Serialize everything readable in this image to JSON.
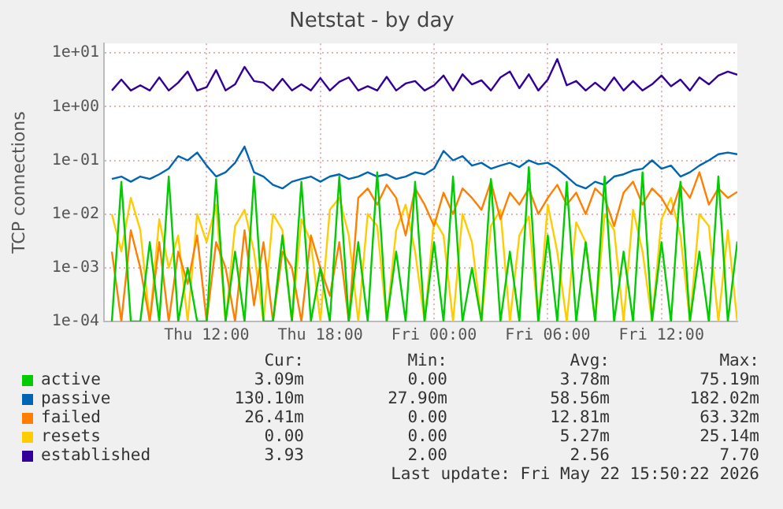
{
  "chart_data": {
    "type": "line",
    "title": "Netstat - by day",
    "ylabel": "TCP connections",
    "log": "y",
    "grid": true,
    "legend": "bottom",
    "marker": "none",
    "line_style": "solid",
    "x": [
      "2026-05-21T07:00",
      "2026-05-21T07:30",
      "2026-05-21T08:00",
      "2026-05-21T08:30",
      "2026-05-21T09:00",
      "2026-05-21T09:30",
      "2026-05-21T10:00",
      "2026-05-21T10:30",
      "2026-05-21T11:00",
      "2026-05-21T11:30",
      "2026-05-21T12:00",
      "2026-05-21T12:30",
      "2026-05-21T13:00",
      "2026-05-21T13:30",
      "2026-05-21T14:00",
      "2026-05-21T14:30",
      "2026-05-21T15:00",
      "2026-05-21T15:30",
      "2026-05-21T16:00",
      "2026-05-21T16:30",
      "2026-05-21T17:00",
      "2026-05-21T17:30",
      "2026-05-21T18:00",
      "2026-05-21T18:30",
      "2026-05-21T19:00",
      "2026-05-21T19:30",
      "2026-05-21T20:00",
      "2026-05-21T20:30",
      "2026-05-21T21:00",
      "2026-05-21T21:30",
      "2026-05-21T22:00",
      "2026-05-21T22:30",
      "2026-05-21T23:00",
      "2026-05-21T23:30",
      "2026-05-22T00:00",
      "2026-05-22T00:30",
      "2026-05-22T01:00",
      "2026-05-22T01:30",
      "2026-05-22T02:00",
      "2026-05-22T02:30",
      "2026-05-22T03:00",
      "2026-05-22T03:30",
      "2026-05-22T04:00",
      "2026-05-22T04:30",
      "2026-05-22T05:00",
      "2026-05-22T05:30",
      "2026-05-22T06:00",
      "2026-05-22T06:30",
      "2026-05-22T07:00",
      "2026-05-22T07:30",
      "2026-05-22T08:00",
      "2026-05-22T08:30",
      "2026-05-22T09:00",
      "2026-05-22T09:30",
      "2026-05-22T10:00",
      "2026-05-22T10:30",
      "2026-05-22T11:00",
      "2026-05-22T11:30",
      "2026-05-22T12:00",
      "2026-05-22T12:30",
      "2026-05-22T13:00",
      "2026-05-22T13:30",
      "2026-05-22T14:00",
      "2026-05-22T14:30",
      "2026-05-22T15:00",
      "2026-05-22T15:30",
      "2026-05-22T16:00"
    ],
    "xlim": [
      "2026-05-21T06:35",
      "2026-05-22T16:00"
    ],
    "xticks": [
      {
        "value": "2026-05-21T12:00",
        "label": "Thu 12:00"
      },
      {
        "value": "2026-05-21T18:00",
        "label": "Thu 18:00"
      },
      {
        "value": "2026-05-22T00:00",
        "label": "Fri 00:00"
      },
      {
        "value": "2026-05-22T06:00",
        "label": "Fri 06:00"
      },
      {
        "value": "2026-05-22T12:00",
        "label": "Fri 12:00"
      }
    ],
    "ylim": [
      0.0001,
      15
    ],
    "yticks": [
      {
        "value": 0.0001,
        "label": "1e-04"
      },
      {
        "value": 0.001,
        "label": "1e-03"
      },
      {
        "value": 0.01,
        "label": "1e-02"
      },
      {
        "value": 0.1,
        "label": "1e-01"
      },
      {
        "value": 1,
        "label": "1e+00"
      },
      {
        "value": 10,
        "label": "1e+01"
      }
    ],
    "series": [
      {
        "name": "active",
        "color": "#00cc00",
        "values": [
          0.0001,
          0.04,
          0.0001,
          0.0001,
          0.003,
          0.0001,
          0.05,
          0.0001,
          0.001,
          0.0001,
          0.0001,
          0.045,
          0.0001,
          0.002,
          0.0001,
          0.05,
          0.0001,
          0.0001,
          0.004,
          0.0001,
          0.04,
          0.0001,
          0.001,
          0.0001,
          0.05,
          0.0001,
          0.003,
          0.0001,
          0.06,
          0.0001,
          0.002,
          0.0001,
          0.04,
          0.0001,
          0.003,
          0.0001,
          0.05,
          0.0001,
          0.001,
          0.0001,
          0.045,
          0.0001,
          0.002,
          0.0001,
          0.075,
          0.0001,
          0.004,
          0.0001,
          0.04,
          0.0001,
          0.003,
          0.0001,
          0.05,
          0.0001,
          0.002,
          0.0001,
          0.06,
          0.0001,
          0.003,
          0.0001,
          0.04,
          0.0001,
          0.002,
          0.0001,
          0.05,
          0.0001,
          0.00309
        ]
      },
      {
        "name": "passive",
        "color": "#0066b3",
        "values": [
          0.045,
          0.05,
          0.04,
          0.05,
          0.045,
          0.055,
          0.07,
          0.12,
          0.1,
          0.14,
          0.08,
          0.05,
          0.06,
          0.09,
          0.18,
          0.06,
          0.05,
          0.035,
          0.03,
          0.04,
          0.045,
          0.05,
          0.04,
          0.05,
          0.055,
          0.045,
          0.05,
          0.06,
          0.05,
          0.055,
          0.045,
          0.05,
          0.06,
          0.055,
          0.07,
          0.15,
          0.1,
          0.12,
          0.08,
          0.09,
          0.07,
          0.08,
          0.09,
          0.075,
          0.1,
          0.085,
          0.09,
          0.07,
          0.05,
          0.035,
          0.03,
          0.04,
          0.035,
          0.05,
          0.055,
          0.065,
          0.07,
          0.1,
          0.07,
          0.08,
          0.05,
          0.06,
          0.08,
          0.1,
          0.13,
          0.14,
          0.13
        ]
      },
      {
        "name": "failed",
        "color": "#ff8000",
        "values": [
          0.002,
          0.0001,
          0.005,
          0.001,
          0.0001,
          0.003,
          0.0001,
          0.002,
          0.0005,
          0.004,
          0.0001,
          0.003,
          0.001,
          0.0001,
          0.005,
          0.0002,
          0.003,
          0.0001,
          0.002,
          0.001,
          0.0001,
          0.004,
          0.001,
          0.0003,
          0.003,
          0.0001,
          0.02,
          0.03,
          0.015,
          0.035,
          0.02,
          0.004,
          0.03,
          0.015,
          0.006,
          0.025,
          0.01,
          0.03,
          0.02,
          0.012,
          0.04,
          0.008,
          0.025,
          0.015,
          0.03,
          0.01,
          0.02,
          0.035,
          0.015,
          0.025,
          0.01,
          0.03,
          0.02,
          0.006,
          0.025,
          0.04,
          0.015,
          0.03,
          0.02,
          0.01,
          0.035,
          0.02,
          0.06,
          0.015,
          0.03,
          0.02,
          0.026
        ]
      },
      {
        "name": "resets",
        "color": "#ffcc00",
        "values": [
          0.01,
          0.002,
          0.02,
          0.005,
          0.0001,
          0.008,
          0.001,
          0.004,
          0.0001,
          0.01,
          0.003,
          0.015,
          0.0001,
          0.006,
          0.012,
          0.002,
          0.0001,
          0.01,
          0.005,
          0.0001,
          0.008,
          0.003,
          0.0001,
          0.012,
          0.02,
          0.004,
          0.0001,
          0.01,
          0.006,
          0.0001,
          0.005,
          0.015,
          0.002,
          0.0001,
          0.008,
          0.004,
          0.0001,
          0.01,
          0.003,
          0.0001,
          0.006,
          0.012,
          0.0001,
          0.004,
          0.009,
          0.0001,
          0.015,
          0.002,
          0.0001,
          0.007,
          0.003,
          0.0001,
          0.01,
          0.005,
          0.0001,
          0.012,
          0.002,
          0.0001,
          0.008,
          0.02,
          0.004,
          0.0001,
          0.01,
          0.006,
          0.0001,
          0.005,
          0.0001
        ]
      },
      {
        "name": "established",
        "color": "#330099",
        "values": [
          2,
          3.2,
          2,
          2.5,
          2,
          3.5,
          2,
          2.8,
          4.5,
          2,
          2.3,
          4.8,
          2,
          2.6,
          5.5,
          3,
          2.8,
          2,
          3.3,
          2,
          2.6,
          2,
          3.4,
          2,
          2.9,
          3.5,
          2,
          2.4,
          2,
          3.6,
          2,
          2.7,
          3,
          2,
          2.5,
          3.8,
          2,
          4,
          2.6,
          3.1,
          2,
          3.5,
          4.5,
          2.2,
          4,
          2,
          3.2,
          7.7,
          2.5,
          3,
          2,
          2.8,
          2,
          3.5,
          2,
          3,
          2,
          2.6,
          3.8,
          2.4,
          3.2,
          2,
          3.5,
          2.6,
          3.8,
          4.5,
          3.93
        ]
      }
    ],
    "annotations": [
      "Cur:",
      "Min:",
      "Avg:",
      "Max:",
      "3.09m",
      "0.00",
      "3.78m",
      "75.19m",
      "130.10m",
      "27.90m",
      "58.56m",
      "182.02m",
      "26.41m",
      "0.00",
      "12.81m",
      "63.32m",
      "0.00",
      "0.00",
      "5.27m",
      "25.14m",
      "3.93",
      "2.00",
      "2.56",
      "7.70",
      "Last update: Fri May 22 15:50:22 2026"
    ]
  }
}
